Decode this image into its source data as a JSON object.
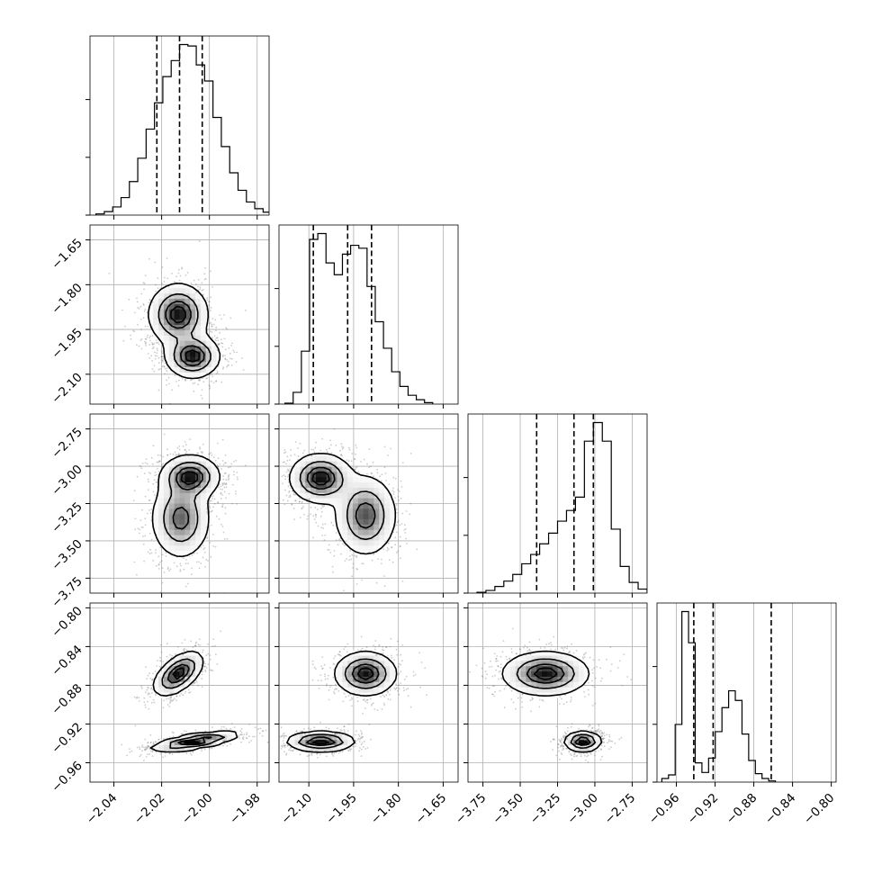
{
  "chart_data": {
    "type": "corner",
    "n_params": 4,
    "grid": true,
    "colors": {
      "line": "#000000",
      "grid": "#b0b0b0",
      "points": "#6e6e6e"
    },
    "parameters": [
      {
        "range": [
          -2.05,
          -1.975
        ],
        "ticks": [
          -2.04,
          -2.02,
          -2.0,
          -1.98
        ],
        "tick_labels": [
          "−2.04",
          "−2.02",
          "−2.00",
          "−1.98"
        ],
        "quantiles": [
          -2.022,
          -2.0125,
          -2.003
        ],
        "mode_centers": [
          -2.013,
          -2.007
        ],
        "spreads": [
          0.0055,
          0.0045
        ],
        "weights": [
          0.5,
          0.5
        ],
        "hist": {
          "edges_start": -2.0475,
          "bin_width": 0.0035,
          "counts": [
            0.4,
            1.2,
            2.8,
            6.0,
            11.5,
            19.5,
            29.5,
            38.5,
            47.5,
            53.0,
            58.5,
            58.0,
            51.5,
            46.0,
            33.5,
            23.5,
            14.5,
            8.5,
            4.5,
            2.2,
            1.0,
            0.4
          ]
        }
      },
      {
        "range": [
          -2.2,
          -1.6
        ],
        "ticks": [
          -2.1,
          -1.95,
          -1.8,
          -1.65
        ],
        "tick_labels": [
          "−2.10",
          "−1.95",
          "−1.80",
          "−1.65"
        ],
        "quantiles": [
          -2.085,
          -1.97,
          -1.89
        ],
        "mode_centers": [
          -2.06,
          -1.91
        ],
        "spreads": [
          0.055,
          0.06
        ],
        "weights": [
          0.5,
          0.5
        ],
        "hist": {
          "edges_start": -2.18,
          "bin_width": 0.0275,
          "counts": [
            0.3,
            4.0,
            18.0,
            56.0,
            58.0,
            48.0,
            44.0,
            51.0,
            54.0,
            53.0,
            40.0,
            28.0,
            19.0,
            11.0,
            6.0,
            3.0,
            1.5,
            0.5
          ]
        }
      },
      {
        "range": [
          -3.85,
          -2.65
        ],
        "ticks": [
          -3.75,
          -3.5,
          -3.25,
          -3.0,
          -2.75
        ],
        "tick_labels": [
          "−3.75",
          "−3.50",
          "−3.25",
          "−3.00",
          "−2.75"
        ],
        "quantiles": [
          -3.39,
          -3.14,
          -3.01
        ],
        "mode_centers": [
          -3.08,
          -3.33
        ],
        "spreads": [
          0.07,
          0.15
        ],
        "weights": [
          0.55,
          0.45
        ],
        "hist": {
          "edges_start": -3.79,
          "bin_width": 0.06,
          "counts": [
            0.3,
            1.0,
            2.5,
            4.5,
            7.0,
            11.0,
            14.5,
            18.5,
            22.5,
            27.0,
            31.0,
            36.0,
            57.0,
            64.0,
            57.0,
            24.0,
            10.0,
            4.0,
            1.5
          ]
        }
      },
      {
        "range": [
          -0.98,
          -0.795
        ],
        "ticks": [
          -0.96,
          -0.92,
          -0.88,
          -0.84,
          -0.8
        ],
        "tick_labels": [
          "−0.96",
          "−0.92",
          "−0.88",
          "−0.84",
          "−0.80"
        ],
        "quantiles": [
          -0.942,
          -0.922,
          -0.862
        ],
        "mode_centers": [
          -0.938,
          -0.868
        ],
        "spreads": [
          0.006,
          0.011
        ],
        "weights": [
          0.5,
          0.5
        ],
        "hist": {
          "edges_start": -0.975,
          "bin_width": 0.0069,
          "counts": [
            1.5,
            3.0,
            24.0,
            71.0,
            58.0,
            8.0,
            4.0,
            10.0,
            21.0,
            31.0,
            38.0,
            34.0,
            20.0,
            9.0,
            3.5,
            1.5,
            0.5
          ]
        }
      }
    ],
    "joint_panels": [
      {
        "row": 1,
        "col": 0,
        "peaks": [
          {
            "center": [
              -2.013,
              -1.9
            ],
            "sd": [
              0.006,
              0.05
            ],
            "w": 0.5
          },
          {
            "center": [
              -2.007,
              -2.04
            ],
            "sd": [
              0.0055,
              0.035
            ],
            "w": 0.5
          }
        ]
      },
      {
        "row": 2,
        "col": 0,
        "peaks": [
          {
            "center": [
              -2.008,
              -3.07
            ],
            "sd": [
              0.006,
              0.07
            ],
            "w": 0.55
          },
          {
            "center": [
              -2.012,
              -3.35
            ],
            "sd": [
              0.006,
              0.13
            ],
            "w": 0.45
          }
        ]
      },
      {
        "row": 2,
        "col": 1,
        "peaks": [
          {
            "center": [
              -2.06,
              -3.08
            ],
            "sd": [
              0.05,
              0.08
            ],
            "w": 0.55
          },
          {
            "center": [
              -1.91,
              -3.33
            ],
            "sd": [
              0.05,
              0.13
            ],
            "w": 0.45
          }
        ]
      },
      {
        "row": 3,
        "col": 0,
        "peaks": [
          {
            "center": [
              -2.013,
              -0.868
            ],
            "sd": [
              0.005,
              0.011
            ],
            "w": 0.5,
            "rho": 0.55
          },
          {
            "center": [
              -2.006,
              -0.938
            ],
            "sd": [
              0.009,
              0.005
            ],
            "w": 0.5,
            "rho": 0.7
          }
        ]
      },
      {
        "row": 3,
        "col": 1,
        "peaks": [
          {
            "center": [
              -1.91,
              -0.868
            ],
            "sd": [
              0.05,
              0.011
            ],
            "w": 0.5
          },
          {
            "center": [
              -2.06,
              -0.938
            ],
            "sd": [
              0.055,
              0.005
            ],
            "w": 0.5
          }
        ]
      },
      {
        "row": 3,
        "col": 2,
        "peaks": [
          {
            "center": [
              -3.33,
              -0.868
            ],
            "sd": [
              0.14,
              0.011
            ],
            "w": 0.5
          },
          {
            "center": [
              -3.08,
              -0.938
            ],
            "sd": [
              0.06,
              0.005
            ],
            "w": 0.5
          }
        ]
      }
    ],
    "contour_levels": [
      0.118,
      0.393,
      0.675,
      0.865
    ]
  }
}
